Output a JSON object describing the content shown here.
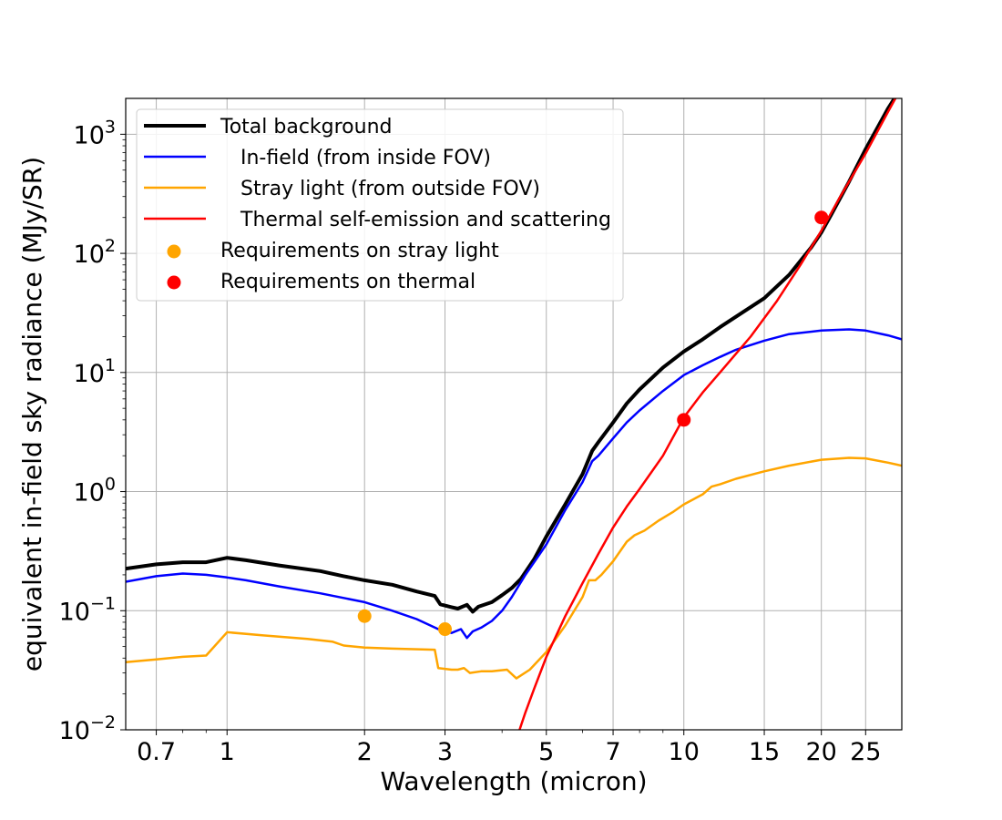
{
  "chart_data": {
    "type": "line",
    "xlabel": "Wavelength (micron)",
    "ylabel": "equivalent in-field sky radiance (MJy/SR)",
    "x_scale": "log",
    "y_scale": "log",
    "xlim": [
      0.6,
      30
    ],
    "ylim": [
      0.01,
      2000
    ],
    "x_ticks": [
      0.7,
      1,
      2,
      3,
      5,
      7,
      10,
      15,
      20,
      25
    ],
    "x_tick_labels": [
      "0.7",
      "1",
      "2",
      "3",
      "5",
      "7",
      "10",
      "15",
      "20",
      "25"
    ],
    "y_ticks": [
      0.01,
      0.1,
      1,
      10,
      100,
      1000
    ],
    "y_tick_labels": [
      {
        "base": "10",
        "exp": "−2"
      },
      {
        "base": "10",
        "exp": "−1"
      },
      {
        "base": "10",
        "exp": "0"
      },
      {
        "base": "10",
        "exp": "1"
      },
      {
        "base": "10",
        "exp": "2"
      },
      {
        "base": "10",
        "exp": "3"
      }
    ],
    "grid": true,
    "legend_position": "upper-left",
    "series": [
      {
        "name": "Total background",
        "kind": "line",
        "color": "#000000",
        "width": 4,
        "points": [
          [
            0.6,
            0.225
          ],
          [
            0.7,
            0.245
          ],
          [
            0.8,
            0.255
          ],
          [
            0.9,
            0.255
          ],
          [
            1.0,
            0.278
          ],
          [
            1.1,
            0.265
          ],
          [
            1.3,
            0.24
          ],
          [
            1.6,
            0.215
          ],
          [
            1.8,
            0.195
          ],
          [
            2.0,
            0.18
          ],
          [
            2.3,
            0.165
          ],
          [
            2.6,
            0.145
          ],
          [
            2.85,
            0.133
          ],
          [
            2.93,
            0.113
          ],
          [
            3.1,
            0.107
          ],
          [
            3.2,
            0.104
          ],
          [
            3.35,
            0.112
          ],
          [
            3.45,
            0.098
          ],
          [
            3.55,
            0.108
          ],
          [
            3.8,
            0.118
          ],
          [
            4.0,
            0.135
          ],
          [
            4.2,
            0.155
          ],
          [
            4.4,
            0.185
          ],
          [
            4.7,
            0.27
          ],
          [
            5.0,
            0.42
          ],
          [
            5.5,
            0.78
          ],
          [
            6.0,
            1.4
          ],
          [
            6.3,
            2.2
          ],
          [
            6.5,
            2.6
          ],
          [
            7.0,
            3.8
          ],
          [
            7.5,
            5.5
          ],
          [
            8.0,
            7.2
          ],
          [
            9.0,
            11.0
          ],
          [
            10.0,
            15.0
          ],
          [
            11.0,
            19.0
          ],
          [
            12.0,
            24.0
          ],
          [
            15.0,
            42.0
          ],
          [
            17.0,
            66.0
          ],
          [
            19.0,
            112.0
          ],
          [
            20.0,
            150.0
          ],
          [
            21.0,
            210.0
          ],
          [
            23.0,
            400.0
          ],
          [
            25.0,
            750.0
          ],
          [
            28.0,
            1650.0
          ],
          [
            30.0,
            2500.0
          ]
        ]
      },
      {
        "name": "In-field (from inside FOV)",
        "kind": "line",
        "color": "#0000ff",
        "width": 2.5,
        "points": [
          [
            0.6,
            0.175
          ],
          [
            0.7,
            0.195
          ],
          [
            0.8,
            0.205
          ],
          [
            0.9,
            0.2
          ],
          [
            1.0,
            0.19
          ],
          [
            1.1,
            0.18
          ],
          [
            1.3,
            0.16
          ],
          [
            1.6,
            0.14
          ],
          [
            2.0,
            0.118
          ],
          [
            2.3,
            0.1
          ],
          [
            2.6,
            0.085
          ],
          [
            2.9,
            0.07
          ],
          [
            3.1,
            0.065
          ],
          [
            3.25,
            0.07
          ],
          [
            3.35,
            0.059
          ],
          [
            3.45,
            0.067
          ],
          [
            3.6,
            0.072
          ],
          [
            3.8,
            0.082
          ],
          [
            4.0,
            0.1
          ],
          [
            4.2,
            0.13
          ],
          [
            4.5,
            0.2
          ],
          [
            5.0,
            0.36
          ],
          [
            5.5,
            0.7
          ],
          [
            6.0,
            1.2
          ],
          [
            6.3,
            1.8
          ],
          [
            6.5,
            2.0
          ],
          [
            7.0,
            2.8
          ],
          [
            7.5,
            3.8
          ],
          [
            8.0,
            4.8
          ],
          [
            9.0,
            7.0
          ],
          [
            10.0,
            9.5
          ],
          [
            11.0,
            11.5
          ],
          [
            12.0,
            13.5
          ],
          [
            13.0,
            15.5
          ],
          [
            15.0,
            18.5
          ],
          [
            17.0,
            21.0
          ],
          [
            20.0,
            22.5
          ],
          [
            23.0,
            23.0
          ],
          [
            25.0,
            22.5
          ],
          [
            28.0,
            20.5
          ],
          [
            30.0,
            19.0
          ]
        ]
      },
      {
        "name": "Stray light (from outside FOV)",
        "kind": "line",
        "color": "#ffa500",
        "width": 2.5,
        "points": [
          [
            0.6,
            0.037
          ],
          [
            0.7,
            0.039
          ],
          [
            0.8,
            0.041
          ],
          [
            0.9,
            0.042
          ],
          [
            1.0,
            0.066
          ],
          [
            1.2,
            0.062
          ],
          [
            1.5,
            0.058
          ],
          [
            1.7,
            0.055
          ],
          [
            1.8,
            0.051
          ],
          [
            2.0,
            0.049
          ],
          [
            2.3,
            0.048
          ],
          [
            2.85,
            0.047
          ],
          [
            2.9,
            0.033
          ],
          [
            3.1,
            0.032
          ],
          [
            3.2,
            0.032
          ],
          [
            3.3,
            0.033
          ],
          [
            3.4,
            0.03
          ],
          [
            3.6,
            0.031
          ],
          [
            3.8,
            0.031
          ],
          [
            4.1,
            0.032
          ],
          [
            4.3,
            0.027
          ],
          [
            4.6,
            0.032
          ],
          [
            5.0,
            0.045
          ],
          [
            5.5,
            0.075
          ],
          [
            6.0,
            0.13
          ],
          [
            6.2,
            0.18
          ],
          [
            6.4,
            0.18
          ],
          [
            6.6,
            0.2
          ],
          [
            7.0,
            0.26
          ],
          [
            7.5,
            0.38
          ],
          [
            7.8,
            0.43
          ],
          [
            8.2,
            0.47
          ],
          [
            8.8,
            0.57
          ],
          [
            9.5,
            0.68
          ],
          [
            10.0,
            0.78
          ],
          [
            11.0,
            0.95
          ],
          [
            11.5,
            1.1
          ],
          [
            12.0,
            1.15
          ],
          [
            13.0,
            1.28
          ],
          [
            15.0,
            1.48
          ],
          [
            17.0,
            1.65
          ],
          [
            20.0,
            1.85
          ],
          [
            23.0,
            1.92
          ],
          [
            25.0,
            1.9
          ],
          [
            28.0,
            1.75
          ],
          [
            30.0,
            1.65
          ]
        ]
      },
      {
        "name": "Thermal self-emission and scattering",
        "kind": "line",
        "color": "#ff0000",
        "width": 2.5,
        "points": [
          [
            4.35,
            0.0095
          ],
          [
            4.5,
            0.014
          ],
          [
            4.7,
            0.022
          ],
          [
            5.0,
            0.041
          ],
          [
            5.5,
            0.09
          ],
          [
            6.0,
            0.17
          ],
          [
            6.5,
            0.3
          ],
          [
            7.0,
            0.5
          ],
          [
            7.5,
            0.75
          ],
          [
            8.0,
            1.05
          ],
          [
            9.0,
            2.0
          ],
          [
            10.0,
            4.2
          ],
          [
            11.0,
            6.8
          ],
          [
            12.0,
            10.0
          ],
          [
            14.0,
            20.0
          ],
          [
            16.0,
            40.0
          ],
          [
            18.0,
            80.0
          ],
          [
            20.0,
            155.0
          ],
          [
            22.0,
            300.0
          ],
          [
            25.0,
            690.0
          ],
          [
            28.0,
            1550.0
          ],
          [
            30.0,
            2500.0
          ]
        ]
      },
      {
        "name": "Requirements on stray light",
        "kind": "scatter",
        "color": "#ffa500",
        "points": [
          [
            2.0,
            0.09
          ],
          [
            3.0,
            0.07
          ]
        ]
      },
      {
        "name": "Requirements on thermal",
        "kind": "scatter",
        "color": "#ff0000",
        "points": [
          [
            10.0,
            4.0
          ],
          [
            20.0,
            200.0
          ]
        ]
      }
    ]
  }
}
